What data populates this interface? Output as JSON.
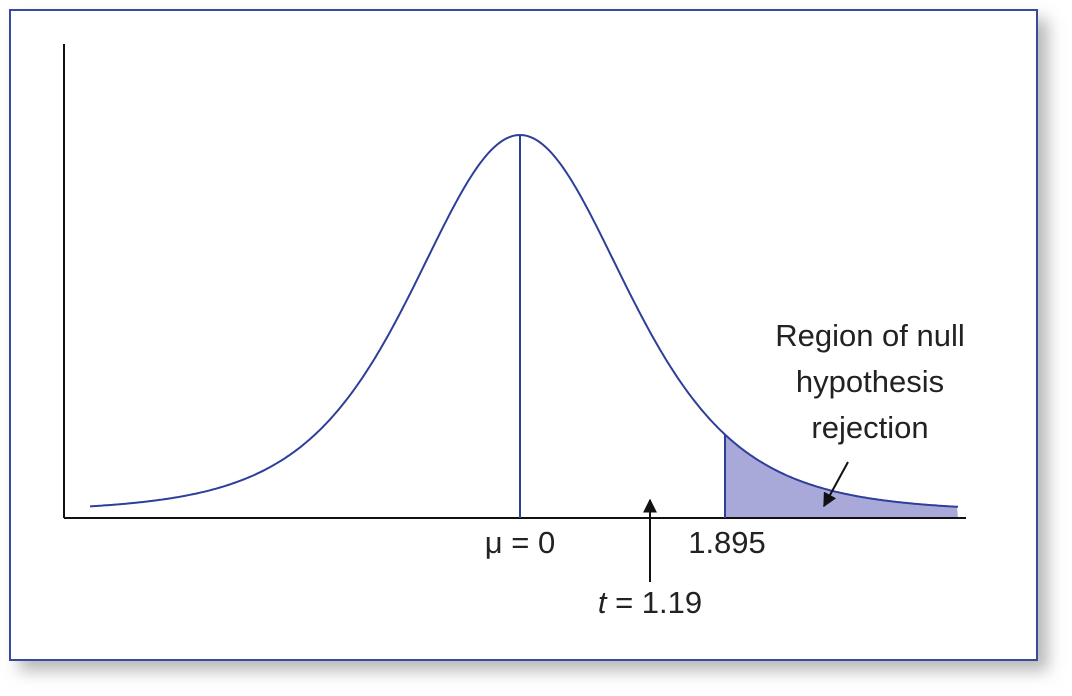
{
  "labels": {
    "mean": "μ = 0",
    "critical": "1.895",
    "t_symbol": "t",
    "t_value": "= 1.19"
  },
  "region": {
    "lines": [
      "Region of null",
      "hypothesis",
      "rejection"
    ]
  }
}
